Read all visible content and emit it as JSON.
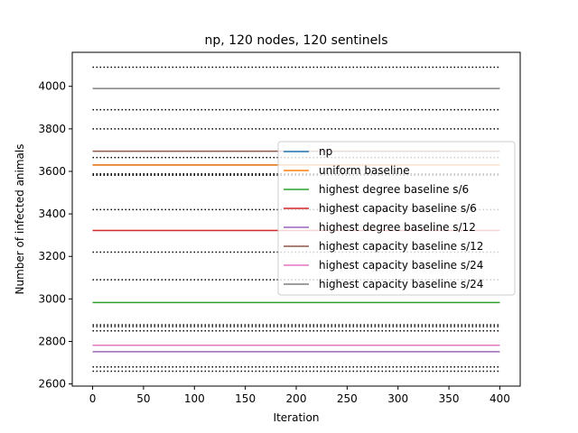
{
  "chart_data": {
    "type": "line",
    "title": "np, 120 nodes, 120 sentinels",
    "xlabel": "Iteration",
    "ylabel": "Number of infected animals",
    "xlim": [
      -20,
      420
    ],
    "ylim": [
      2590,
      4160
    ],
    "xticks": [
      0,
      50,
      100,
      150,
      200,
      250,
      300,
      350,
      400
    ],
    "yticks": [
      2600,
      2800,
      3000,
      3200,
      3400,
      3600,
      3800,
      4000
    ],
    "x_range": [
      0,
      400
    ],
    "grid": false,
    "legend_position": "center-right",
    "series": [
      {
        "name": "np",
        "value": 3630,
        "color": "#1f77b4"
      },
      {
        "name": "uniform baseline",
        "value": 3630,
        "color": "#ff7f0e"
      },
      {
        "name": "highest degree baseline s/6",
        "value": 2983,
        "color": "#2ca02c"
      },
      {
        "name": "highest capacity baseline s/6",
        "value": 3322,
        "color": "#d62728"
      },
      {
        "name": "highest degree baseline s/12",
        "value": 2752,
        "color": "#9467bd"
      },
      {
        "name": "highest capacity baseline s/12",
        "value": 3695,
        "color": "#8c564b"
      },
      {
        "name": "highest capacity baseline s/24",
        "value": 2782,
        "color": "#e377c2"
      },
      {
        "name": "highest capacity baseline s/24",
        "value": 3990,
        "color": "#7f7f7f"
      }
    ],
    "dotted_reference_lines": [
      4090,
      3890,
      3800,
      3665,
      3588,
      3582,
      3420,
      3220,
      3090,
      2878,
      2870,
      2850,
      2680,
      2660
    ]
  }
}
